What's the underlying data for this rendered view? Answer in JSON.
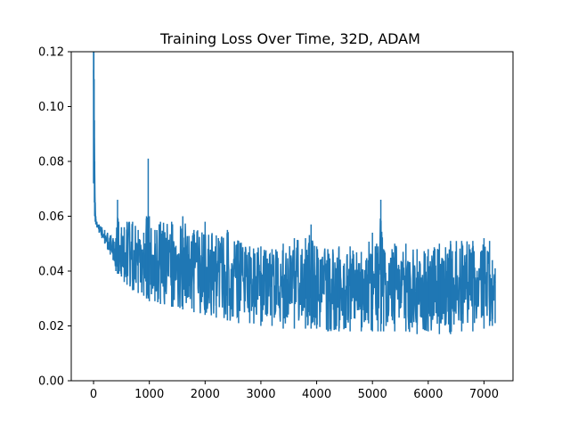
{
  "chart_data": {
    "type": "line",
    "title": "Training Loss Over Time, 32D, ADAM",
    "xlabel": "",
    "ylabel": "",
    "xlim": [
      -400,
      7520
    ],
    "ylim": [
      0.0,
      0.12
    ],
    "x_ticks": [
      0,
      1000,
      2000,
      3000,
      4000,
      5000,
      6000,
      7000
    ],
    "x_tick_labels": [
      "0",
      "1000",
      "2000",
      "3000",
      "4000",
      "5000",
      "6000",
      "7000"
    ],
    "y_ticks": [
      0.0,
      0.02,
      0.04,
      0.06,
      0.08,
      0.1,
      0.12
    ],
    "y_tick_labels": [
      "0.00",
      "0.02",
      "0.04",
      "0.06",
      "0.08",
      "0.10",
      "0.12"
    ],
    "grid": false,
    "legend": "none",
    "color": "#1f77b4",
    "series": [
      {
        "x": [
          0,
          5,
          10,
          15,
          20,
          30,
          40,
          60,
          100,
          150,
          200,
          250,
          300,
          350,
          400,
          430,
          450,
          500,
          550,
          600,
          700,
          800,
          900,
          950,
          980,
          1000,
          1100,
          1200,
          1400,
          1600,
          1800,
          2000,
          2200,
          2400,
          2600,
          2800,
          3000,
          3200,
          3400,
          3600,
          3800,
          3900,
          4000,
          4200,
          4400,
          4600,
          4800,
          5000,
          5100,
          5150,
          5200,
          5400,
          5600,
          5800,
          6000,
          6200,
          6400,
          6600,
          6800,
          7000,
          7100,
          7150,
          7200
        ],
        "y_max": [
          0.12,
          0.12,
          0.11,
          0.095,
          0.08,
          0.065,
          0.06,
          0.058,
          0.057,
          0.056,
          0.055,
          0.054,
          0.053,
          0.052,
          0.052,
          0.066,
          0.058,
          0.056,
          0.056,
          0.058,
          0.058,
          0.055,
          0.054,
          0.06,
          0.081,
          0.06,
          0.055,
          0.058,
          0.058,
          0.06,
          0.055,
          0.058,
          0.053,
          0.055,
          0.051,
          0.049,
          0.049,
          0.048,
          0.05,
          0.052,
          0.052,
          0.057,
          0.049,
          0.048,
          0.049,
          0.049,
          0.047,
          0.054,
          0.049,
          0.066,
          0.048,
          0.05,
          0.05,
          0.048,
          0.048,
          0.05,
          0.051,
          0.051,
          0.051,
          0.052,
          0.051,
          0.044,
          0.041
        ],
        "y_min": [
          0.072,
          0.09,
          0.075,
          0.065,
          0.06,
          0.058,
          0.057,
          0.056,
          0.054,
          0.052,
          0.05,
          0.048,
          0.046,
          0.044,
          0.04,
          0.039,
          0.039,
          0.038,
          0.036,
          0.035,
          0.033,
          0.032,
          0.031,
          0.03,
          0.03,
          0.029,
          0.029,
          0.028,
          0.027,
          0.026,
          0.025,
          0.024,
          0.023,
          0.022,
          0.021,
          0.021,
          0.02,
          0.02,
          0.019,
          0.019,
          0.019,
          0.019,
          0.019,
          0.018,
          0.018,
          0.018,
          0.018,
          0.018,
          0.018,
          0.018,
          0.018,
          0.018,
          0.018,
          0.017,
          0.018,
          0.017,
          0.017,
          0.018,
          0.018,
          0.019,
          0.02,
          0.02,
          0.021
        ]
      }
    ]
  }
}
